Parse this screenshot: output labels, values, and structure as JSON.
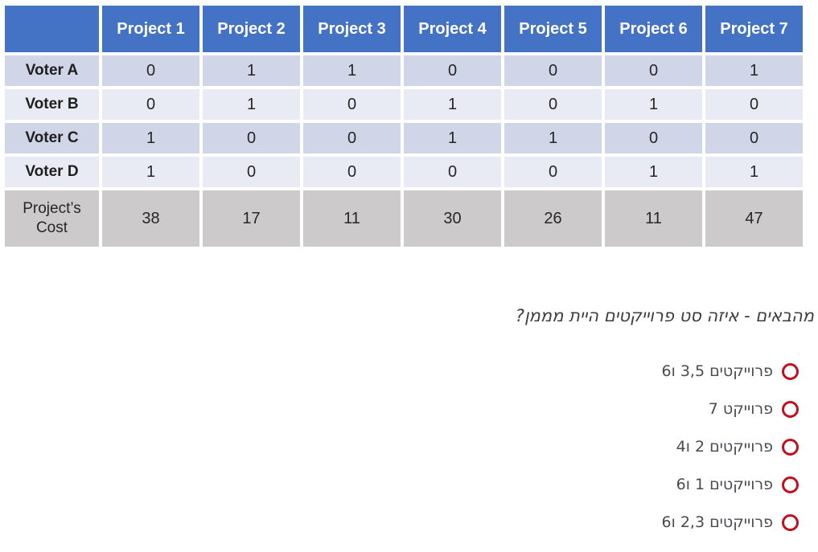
{
  "table": {
    "corner_label": "",
    "column_headers": [
      "Project 1",
      "Project 2",
      "Project 3",
      "Project 4",
      "Project 5",
      "Project 6",
      "Project 7"
    ],
    "rows": [
      {
        "label": "Voter A",
        "values": [
          "0",
          "1",
          "1",
          "0",
          "0",
          "0",
          "1"
        ]
      },
      {
        "label": "Voter B",
        "values": [
          "0",
          "1",
          "0",
          "1",
          "0",
          "1",
          "0"
        ]
      },
      {
        "label": "Voter C",
        "values": [
          "1",
          "0",
          "0",
          "1",
          "1",
          "0",
          "0"
        ]
      },
      {
        "label": "Voter D",
        "values": [
          "1",
          "0",
          "0",
          "0",
          "0",
          "1",
          "1"
        ]
      }
    ],
    "cost_row": {
      "label": "Project’s Cost",
      "values": [
        "38",
        "17",
        "11",
        "30",
        "26",
        "11",
        "47"
      ]
    }
  },
  "question": {
    "text": "מהבאים - איזה סט פרוייקטים היית מממן?"
  },
  "options": [
    {
      "label": "פרוייקטים 3,5 ו6",
      "selected": false
    },
    {
      "label": "פרוייקט 7",
      "selected": false
    },
    {
      "label": "פרוייקטים 2 ו4",
      "selected": false
    },
    {
      "label": "פרוייקטים 1 ו6",
      "selected": false
    },
    {
      "label": "פרוייקטים 2,3 ו6",
      "selected": false
    }
  ],
  "colors": {
    "header_blue": "#4472C4",
    "band_dark": "#D0D5E8",
    "band_light": "#E9EBF4",
    "cost_gray": "#CCCACA",
    "radio_red": "#C00F1E",
    "question_text": "#3d3d3d",
    "option_text": "#4a4a52"
  }
}
